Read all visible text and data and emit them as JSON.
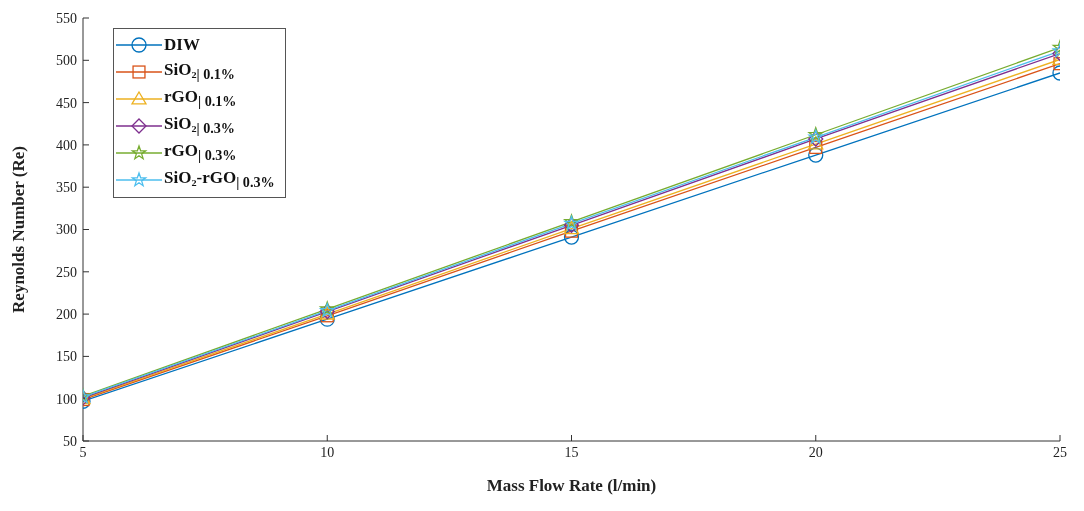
{
  "chart_data": {
    "type": "line",
    "xlabel": "Mass Flow Rate (l/min)",
    "ylabel": "Reynolds Number (Re)",
    "x": [
      5,
      10,
      15,
      20,
      25
    ],
    "series": [
      {
        "name": "DIW",
        "color": "#0072bd",
        "marker": "circle",
        "values": [
          97,
          194,
          291,
          388,
          485
        ]
      },
      {
        "name": "SiO₂$_{| 0.1%}$",
        "color": "#d95319",
        "marker": "square",
        "values": [
          99,
          198,
          298,
          397,
          496
        ]
      },
      {
        "name": "rGO$_{| 0.1%}$",
        "color": "#edb120",
        "marker": "triangle",
        "values": [
          100,
          200,
          301,
          401,
          501
        ]
      },
      {
        "name": "SiO₂$_{| 0.3%}$",
        "color": "#7e2f8e",
        "marker": "diamond",
        "values": [
          101,
          203,
          305,
          407,
          508
        ]
      },
      {
        "name": "rGO$_{| 0.3%}$",
        "color": "#77ac30",
        "marker": "star",
        "values": [
          103,
          206,
          309,
          412,
          515
        ]
      },
      {
        "name": "SiO₂-rGO$_{| 0.3%}$",
        "color": "#4dbeee",
        "marker": "star",
        "values": [
          102,
          204,
          307,
          409,
          511
        ]
      }
    ],
    "xlim": [
      5,
      25
    ],
    "xticks": [
      5,
      10,
      15,
      20,
      25
    ],
    "ylim": [
      50,
      550
    ],
    "yticks": [
      50,
      100,
      150,
      200,
      250,
      300,
      350,
      400,
      450,
      500,
      550
    ],
    "legend": "top left",
    "line_style": "solid"
  }
}
